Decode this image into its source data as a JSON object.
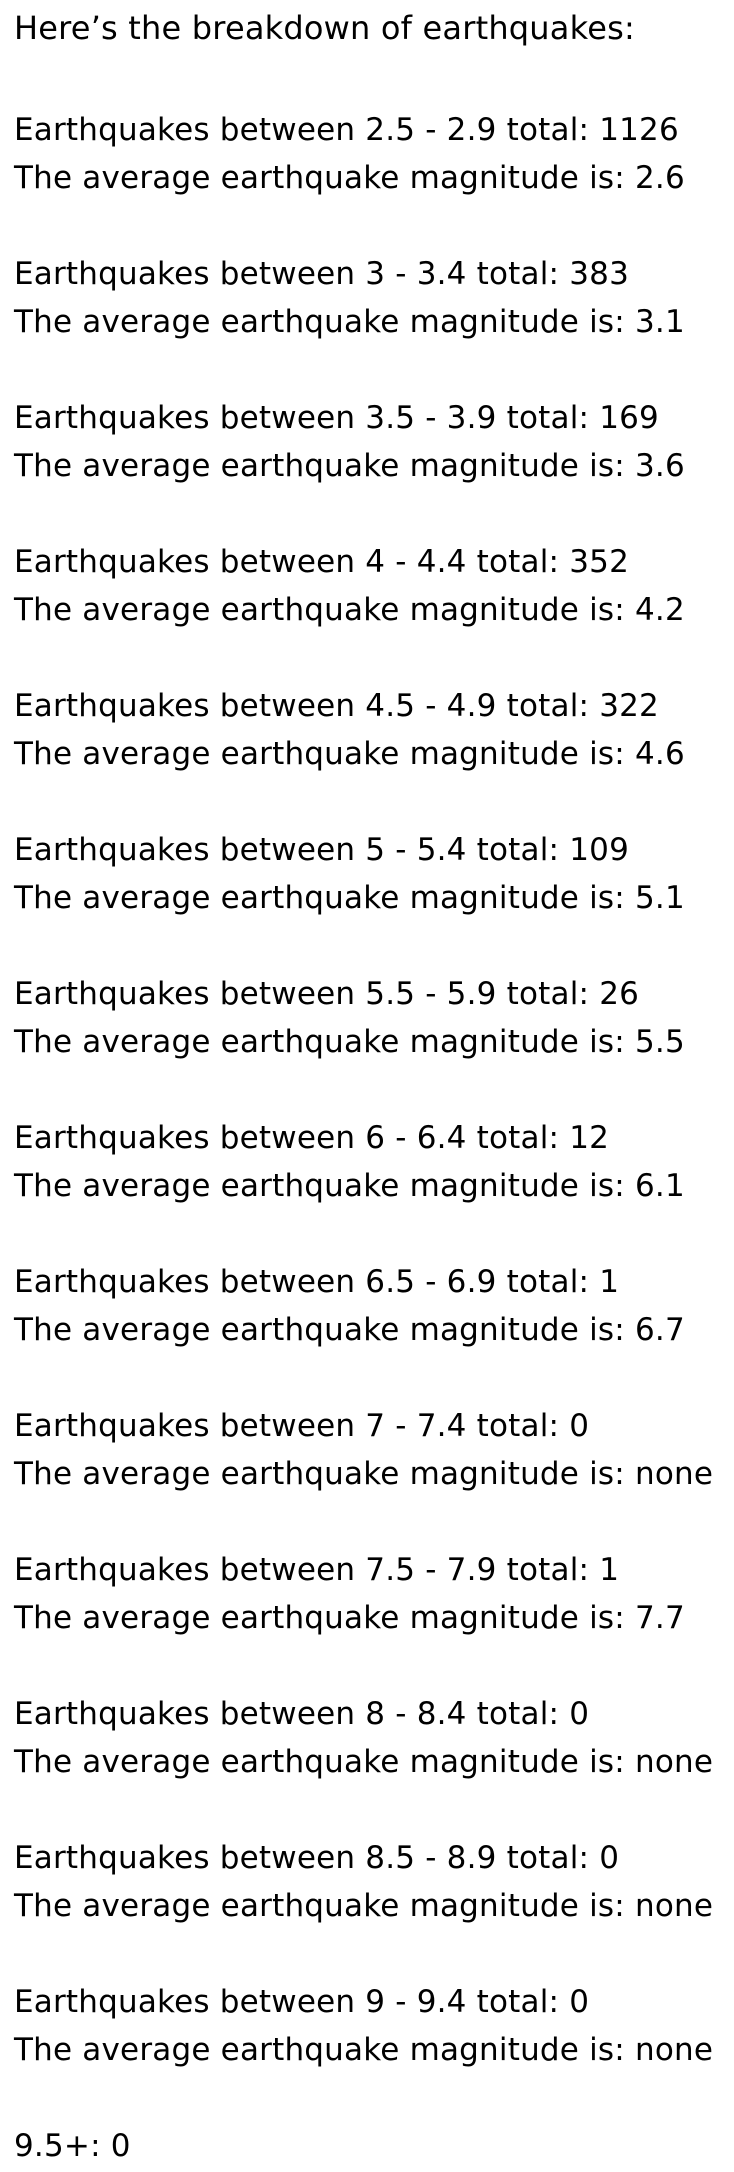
{
  "heading": "Here’s the breakdown of earthquakes:",
  "rows": [
    {
      "count_line": "Earthquakes between 2.5 - 2.9 total: 1126",
      "avg_line": "The average earthquake magnitude is: 2.6"
    },
    {
      "count_line": "Earthquakes between 3 - 3.4 total: 383",
      "avg_line": "The average earthquake magnitude is: 3.1"
    },
    {
      "count_line": "Earthquakes between 3.5 - 3.9 total: 169",
      "avg_line": "The average earthquake magnitude is: 3.6"
    },
    {
      "count_line": "Earthquakes between 4 - 4.4 total: 352",
      "avg_line": "The average earthquake magnitude is: 4.2"
    },
    {
      "count_line": "Earthquakes between 4.5 - 4.9 total: 322",
      "avg_line": "The average earthquake magnitude is: 4.6"
    },
    {
      "count_line": "Earthquakes between 5 - 5.4 total: 109",
      "avg_line": "The average earthquake magnitude is: 5.1"
    },
    {
      "count_line": "Earthquakes between 5.5 - 5.9 total: 26",
      "avg_line": "The average earthquake magnitude is: 5.5"
    },
    {
      "count_line": "Earthquakes between 6 - 6.4 total: 12",
      "avg_line": "The average earthquake magnitude is: 6.1"
    },
    {
      "count_line": "Earthquakes between 6.5 - 6.9 total: 1",
      "avg_line": "The average earthquake magnitude is: 6.7"
    },
    {
      "count_line": "Earthquakes between 7 - 7.4 total: 0",
      "avg_line": "The average earthquake magnitude is: none"
    },
    {
      "count_line": "Earthquakes between 7.5 - 7.9 total: 1",
      "avg_line": "The average earthquake magnitude is: 7.7"
    },
    {
      "count_line": "Earthquakes between 8 - 8.4 total: 0",
      "avg_line": "The average earthquake magnitude is: none"
    },
    {
      "count_line": "Earthquakes between 8.5 - 8.9 total: 0",
      "avg_line": "The average earthquake magnitude is: none"
    },
    {
      "count_line": "Earthquakes between 9 - 9.4 total: 0",
      "avg_line": "The average earthquake magnitude is: none"
    }
  ],
  "footer": "9.5+: 0"
}
